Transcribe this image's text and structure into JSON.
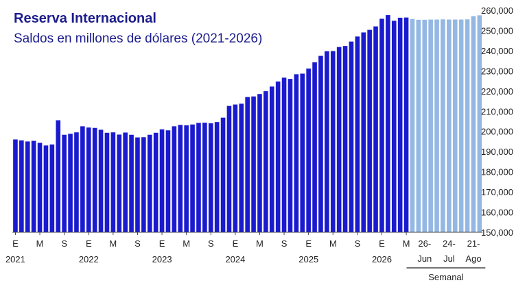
{
  "chart_data": {
    "type": "bar",
    "title": "Reserva Internacional",
    "subtitle": "Saldos en millones de dólares (2021-2026)",
    "ylim": [
      150000,
      260000
    ],
    "yticks": [
      "150,000",
      "160,000",
      "170,000",
      "180,000",
      "190,000",
      "200,000",
      "210,000",
      "220,000",
      "230,000",
      "240,000",
      "250,000",
      "260,000"
    ],
    "colors": {
      "monthly": "#1a1acf",
      "weekly": "#94b8e3",
      "text": "#1c1c8c"
    },
    "monthly_values": [
      196000,
      195500,
      195000,
      195300,
      194300,
      193000,
      193500,
      205500,
      198300,
      198800,
      199500,
      202500,
      201900,
      201700,
      200800,
      199300,
      199500,
      198400,
      199400,
      198300,
      197000,
      197100,
      198300,
      199300,
      201000,
      200500,
      202500,
      203200,
      203000,
      203400,
      204200,
      204300,
      204000,
      204600,
      206800,
      212600,
      213300,
      213700,
      217000,
      217300,
      218500,
      219900,
      222200,
      224700,
      226600,
      226000,
      228300,
      228600,
      231100,
      234200,
      237400,
      239700,
      239800,
      241800,
      242300,
      244500,
      247000,
      249000,
      250300,
      252000,
      255800,
      257600,
      254800,
      256300,
      256400
    ],
    "monthly_labels": [
      {
        "i": 0,
        "l": "E"
      },
      {
        "i": 4,
        "l": "M"
      },
      {
        "i": 8,
        "l": "S"
      },
      {
        "i": 12,
        "l": "E"
      },
      {
        "i": 16,
        "l": "M"
      },
      {
        "i": 20,
        "l": "S"
      },
      {
        "i": 24,
        "l": "E"
      },
      {
        "i": 28,
        "l": "M"
      },
      {
        "i": 32,
        "l": "S"
      },
      {
        "i": 36,
        "l": "E"
      },
      {
        "i": 40,
        "l": "M"
      },
      {
        "i": 44,
        "l": "S"
      },
      {
        "i": 48,
        "l": "E"
      },
      {
        "i": 52,
        "l": "M"
      },
      {
        "i": 56,
        "l": "S"
      },
      {
        "i": 60,
        "l": "E"
      },
      {
        "i": 64,
        "l": "M"
      }
    ],
    "years": [
      {
        "i": 0,
        "l": "2021"
      },
      {
        "i": 12,
        "l": "2022"
      },
      {
        "i": 24,
        "l": "2023"
      },
      {
        "i": 36,
        "l": "2024"
      },
      {
        "i": 48,
        "l": "2025"
      },
      {
        "i": 60,
        "l": "2026"
      }
    ],
    "weekly_values": [
      255700,
      255300,
      255300,
      255400,
      255400,
      255500,
      255400,
      255400,
      255400,
      255500,
      257100,
      257500
    ],
    "weekly_labels": [
      {
        "i": 2,
        "top": "26-",
        "bottom": "Jun"
      },
      {
        "i": 6,
        "top": "24-",
        "bottom": "Jul"
      },
      {
        "i": 10,
        "top": "21-",
        "bottom": "Ago"
      }
    ],
    "weekly_group_label": "Semanal"
  }
}
